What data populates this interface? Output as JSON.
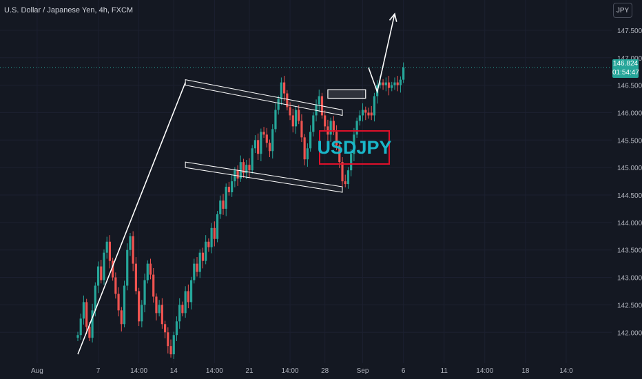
{
  "header": {
    "symbol_title": "U.S. Dollar / Japanese Yen, 4h, FXCM"
  },
  "currency_button": "JPY",
  "last_price": {
    "price": "146.824",
    "countdown": "01:54:47"
  },
  "badge_text": "USDJPY",
  "colors": {
    "background": "#141822",
    "up": "#26a69a",
    "down": "#ef5350",
    "annotation": "#ffffff",
    "badge_border": "#e0102a",
    "badge_text": "#19b6c8"
  },
  "chart_data": {
    "type": "candlestick",
    "instrument": "USDJPY",
    "timeframe": "4h",
    "ylim": [
      141.5,
      147.85
    ],
    "y_ticks": [
      "147.500",
      "147.000",
      "146.500",
      "146.000",
      "145.500",
      "145.000",
      "144.500",
      "144.000",
      "143.500",
      "143.000",
      "142.500",
      "142.000"
    ],
    "y_tick_values": [
      147.5,
      147.0,
      146.5,
      146.0,
      145.5,
      145.0,
      144.5,
      144.0,
      143.5,
      143.0,
      142.5,
      142.0
    ],
    "x_ticks": [
      "Aug",
      "7",
      "14:00",
      "14",
      "14:00",
      "21",
      "14:00",
      "28",
      "Sep",
      "6",
      "11",
      "14:00",
      "18",
      "14:0"
    ],
    "x_tick_bar_index": [
      -14,
      7,
      21,
      33,
      47,
      59,
      73,
      85,
      98,
      112,
      126,
      140,
      154,
      168
    ],
    "candles_mid_price": [
      141.95,
      142.25,
      142.55,
      142.1,
      141.9,
      142.4,
      142.85,
      143.2,
      142.95,
      143.45,
      143.65,
      143.3,
      143.0,
      142.7,
      142.4,
      142.15,
      142.85,
      143.5,
      143.75,
      143.25,
      142.75,
      142.2,
      142.5,
      142.95,
      143.25,
      143.05,
      142.65,
      142.35,
      142.5,
      142.15,
      142.0,
      141.75,
      141.6,
      141.95,
      142.2,
      142.5,
      142.35,
      142.75,
      142.55,
      142.95,
      143.25,
      143.1,
      143.45,
      143.3,
      143.65,
      143.55,
      143.9,
      143.7,
      144.15,
      144.4,
      144.25,
      144.65,
      144.55,
      144.75,
      144.95,
      144.8,
      145.1,
      144.9,
      145.05,
      144.95,
      145.35,
      145.5,
      145.25,
      145.65,
      145.6,
      145.45,
      145.3,
      145.7,
      146.05,
      146.25,
      146.55,
      146.35,
      146.1,
      145.95,
      145.75,
      146.05,
      145.85,
      145.55,
      145.15,
      145.35,
      145.65,
      145.95,
      146.15,
      146.3,
      145.95,
      145.75,
      145.6,
      145.85,
      145.65,
      145.4,
      145.1,
      144.75,
      144.7,
      144.95,
      145.25,
      145.6,
      145.85,
      145.95,
      146.05,
      146.0,
      145.95,
      145.95,
      146.3,
      146.5,
      146.55,
      146.5,
      146.55,
      146.45,
      146.5,
      146.55,
      146.5,
      146.6,
      146.824
    ],
    "annotations": {
      "impulse_trendline": [
        [
          0,
          141.6
        ],
        [
          37,
          146.55
        ]
      ],
      "flag_upper_channel": [
        [
          37,
          146.55
        ],
        [
          91,
          146.0
        ]
      ],
      "flag_lower_channel": [
        [
          37,
          145.05
        ],
        [
          91,
          144.6
        ]
      ],
      "breakout_zone": {
        "x_bar_range": [
          86,
          99
        ],
        "price_range": [
          146.3,
          146.38
        ]
      },
      "projection_arrow": [
        [
          100,
          146.82
        ],
        [
          103,
          146.38
        ],
        [
          109,
          147.8
        ]
      ]
    }
  }
}
